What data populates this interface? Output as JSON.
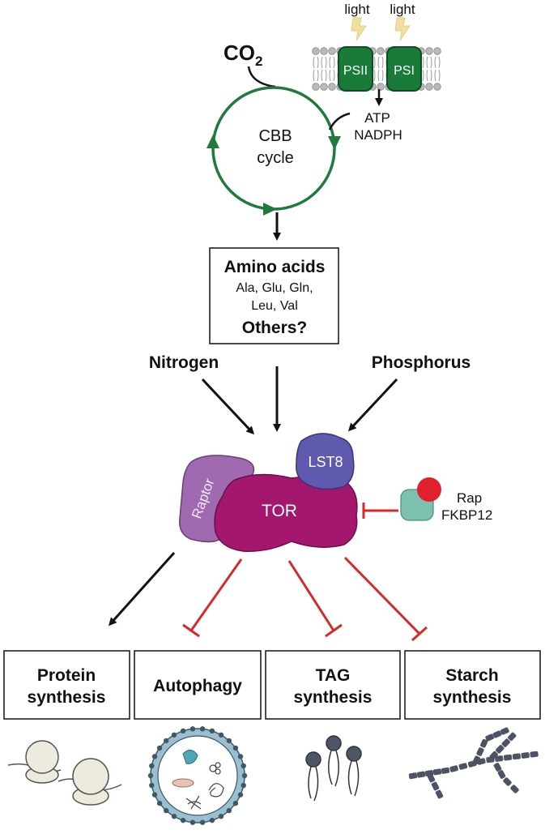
{
  "photosynthesis": {
    "light_left": "light",
    "light_right": "light",
    "psii": "PSII",
    "psi": "PSI",
    "atp": "ATP",
    "nadph": "NADPH",
    "co2_main": "CO",
    "co2_sub": "2",
    "cbb_line1": "CBB",
    "cbb_line2": "cycle"
  },
  "amino_box": {
    "title": "Amino acids",
    "line1": "Ala, Glu, Gln,",
    "line2": "Leu, Val",
    "others": "Others?"
  },
  "inputs": {
    "nitrogen": "Nitrogen",
    "phosphorus": "Phosphorus"
  },
  "complex": {
    "raptor": "Raptor",
    "tor": "TOR",
    "lst8": "LST8",
    "rap": "Rap",
    "fkbp12": "FKBP12"
  },
  "outputs": [
    {
      "line1": "Protein",
      "line2": "synthesis"
    },
    {
      "line1": "Autophagy",
      "line2": ""
    },
    {
      "line1": "TAG",
      "line2": "synthesis"
    },
    {
      "line1": "Starch",
      "line2": "synthesis"
    }
  ],
  "colors": {
    "cbb_green": "#1f7a3c",
    "ps_green": "#1a7a3a",
    "tor": "#a3176f",
    "raptor": "#a06ab0",
    "lst8": "#5f5aad",
    "fkbp12": "#7cc0b0",
    "rap": "#e0202a",
    "inhibit_red": "#d42a2a",
    "light": "#f1dfa0"
  }
}
